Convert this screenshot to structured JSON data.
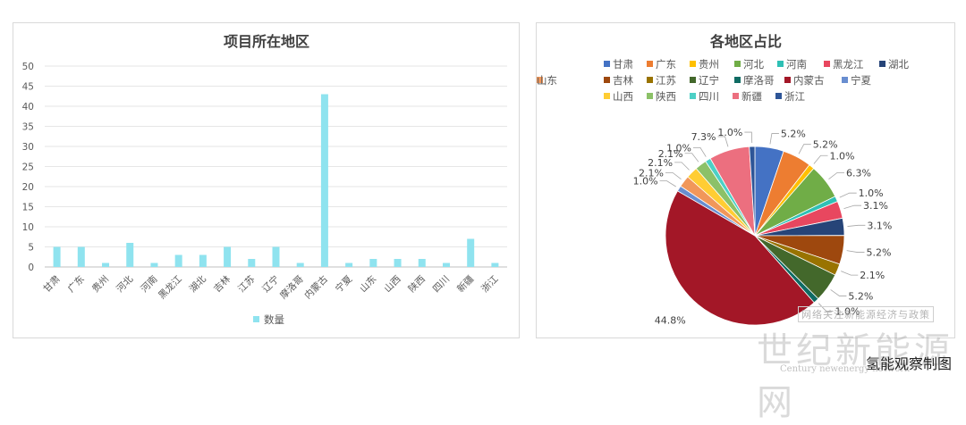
{
  "chart_data": [
    {
      "type": "bar",
      "title": "项目所在地区",
      "categories": [
        "甘肃",
        "广东",
        "贵州",
        "河北",
        "河南",
        "黑龙江",
        "湖北",
        "吉林",
        "江苏",
        "辽宁",
        "摩洛哥",
        "内蒙古",
        "宁夏",
        "山东",
        "山西",
        "陕西",
        "四川",
        "新疆",
        "浙江"
      ],
      "series": [
        {
          "name": "数量",
          "values": [
            5,
            5,
            1,
            6,
            1,
            3,
            3,
            5,
            2,
            5,
            1,
            43,
            1,
            2,
            2,
            2,
            1,
            7,
            1
          ]
        }
      ],
      "ylim": [
        0,
        50
      ],
      "yticks": [
        0,
        5,
        10,
        15,
        20,
        25,
        30,
        35,
        40,
        45,
        50
      ],
      "legend": "bottom",
      "color": "#8fe3ef",
      "grid": true
    },
    {
      "type": "pie",
      "title": "各地区占比",
      "legend": "top",
      "slices": [
        {
          "name": "甘肃",
          "value": 5.2,
          "label": "5.2%",
          "color": "#4472c4"
        },
        {
          "name": "广东",
          "value": 5.2,
          "label": "5.2%",
          "color": "#ed7d31"
        },
        {
          "name": "贵州",
          "value": 1.0,
          "label": "1.0%",
          "color": "#ffc000"
        },
        {
          "name": "河北",
          "value": 6.3,
          "label": "6.3%",
          "color": "#70ad47"
        },
        {
          "name": "河南",
          "value": 1.0,
          "label": "1.0%",
          "color": "#2fc0b5"
        },
        {
          "name": "黑龙江",
          "value": 3.1,
          "label": "3.1%",
          "color": "#e8475f"
        },
        {
          "name": "湖北",
          "value": 3.1,
          "label": "3.1%",
          "color": "#264478"
        },
        {
          "name": "吉林",
          "value": 5.2,
          "label": "5.2%",
          "color": "#9e480e"
        },
        {
          "name": "江苏",
          "value": 2.1,
          "label": "2.1%",
          "color": "#997300"
        },
        {
          "name": "辽宁",
          "value": 5.2,
          "label": "5.2%",
          "color": "#43682b"
        },
        {
          "name": "摩洛哥",
          "value": 1.0,
          "label": "1.0%",
          "color": "#0f6b63"
        },
        {
          "name": "内蒙古",
          "value": 44.8,
          "label": "44.8%",
          "color": "#a31727"
        },
        {
          "name": "宁夏",
          "value": 1.0,
          "label": "1.0%",
          "color": "#698ed0"
        },
        {
          "name": "山东",
          "value": 2.1,
          "label": "2.1%",
          "color": "#f1975a"
        },
        {
          "name": "山西",
          "value": 2.1,
          "label": "2.1%",
          "color": "#ffcd33"
        },
        {
          "name": "陕西",
          "value": 2.1,
          "label": "2.1%",
          "color": "#8cc168"
        },
        {
          "name": "四川",
          "value": 1.0,
          "label": "1.0%",
          "color": "#4dd0c6"
        },
        {
          "name": "新疆",
          "value": 7.3,
          "label": "7.3%",
          "color": "#ec6f7f"
        },
        {
          "name": "浙江",
          "value": 1.0,
          "label": "1.0%",
          "color": "#2e5597"
        }
      ]
    }
  ],
  "watermark": {
    "line1": "网络关注新能源经济与政策",
    "line2": "世纪新能源网",
    "line3": "Century newenergy network"
  },
  "credit": "氢能观察制图"
}
